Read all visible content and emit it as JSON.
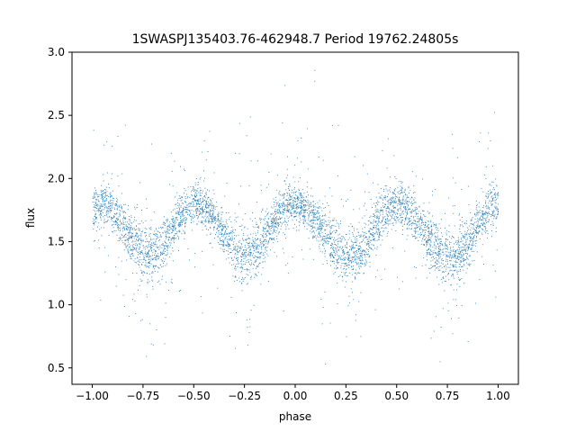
{
  "chart_data": {
    "type": "scatter",
    "title": "1SWASPJ135403.76-462948.7 Period 19762.24805s",
    "xlabel": "phase",
    "ylabel": "flux",
    "xlim": [
      -1.1,
      1.1
    ],
    "ylim": [
      0.37,
      3.0
    ],
    "x_ticks": [
      -1.0,
      -0.75,
      -0.5,
      -0.25,
      0.0,
      0.25,
      0.5,
      0.75,
      1.0
    ],
    "x_tick_labels": [
      "−1.00",
      "−0.75",
      "−0.50",
      "−0.25",
      "0.00",
      "0.25",
      "0.50",
      "0.75",
      "1.00"
    ],
    "y_ticks": [
      0.5,
      1.0,
      1.5,
      2.0,
      2.5,
      3.0
    ],
    "y_tick_labels": [
      "0.5",
      "1.0",
      "1.5",
      "2.0",
      "2.5",
      "3.0"
    ],
    "grid": false,
    "legend": "none",
    "point_color": "#1f77b4",
    "series": [
      {
        "x": [
          -1.0,
          -0.975,
          -0.95,
          -0.925,
          -0.9,
          -0.875,
          -0.85,
          -0.825,
          -0.8,
          -0.775,
          -0.75,
          -0.725,
          -0.7,
          -0.675,
          -0.65,
          -0.625,
          -0.6,
          -0.575,
          -0.55,
          -0.525,
          -0.5,
          -0.475,
          -0.45,
          -0.425,
          -0.4,
          -0.375,
          -0.35,
          -0.325,
          -0.3,
          -0.275,
          -0.25,
          -0.225,
          -0.2,
          -0.175,
          -0.15,
          -0.125,
          -0.1,
          -0.075,
          -0.05,
          -0.025,
          0.0,
          0.025,
          0.05,
          0.075,
          0.1,
          0.125,
          0.15,
          0.175,
          0.2,
          0.225,
          0.25,
          0.275,
          0.3,
          0.325,
          0.35,
          0.375,
          0.4,
          0.425,
          0.45,
          0.475,
          0.5,
          0.525,
          0.55,
          0.575,
          0.6,
          0.625,
          0.65,
          0.675,
          0.7,
          0.725,
          0.75,
          0.775,
          0.8,
          0.825,
          0.85,
          0.875,
          0.9,
          0.925,
          0.95,
          0.975,
          1.0
        ],
        "y": [
          1.76,
          1.79,
          1.8,
          1.78,
          1.74,
          1.69,
          1.63,
          1.57,
          1.51,
          1.46,
          1.42,
          1.4,
          1.4,
          1.43,
          1.48,
          1.55,
          1.62,
          1.68,
          1.74,
          1.78,
          1.8,
          1.8,
          1.78,
          1.74,
          1.69,
          1.63,
          1.57,
          1.51,
          1.46,
          1.42,
          1.4,
          1.4,
          1.43,
          1.48,
          1.55,
          1.62,
          1.68,
          1.74,
          1.78,
          1.8,
          1.8,
          1.79,
          1.77,
          1.73,
          1.67,
          1.61,
          1.55,
          1.49,
          1.44,
          1.4,
          1.38,
          1.38,
          1.4,
          1.44,
          1.5,
          1.57,
          1.64,
          1.7,
          1.75,
          1.79,
          1.8,
          1.79,
          1.77,
          1.73,
          1.67,
          1.61,
          1.55,
          1.49,
          1.44,
          1.4,
          1.38,
          1.38,
          1.4,
          1.44,
          1.5,
          1.57,
          1.64,
          1.7,
          1.75,
          1.79,
          1.8
        ]
      }
    ]
  }
}
